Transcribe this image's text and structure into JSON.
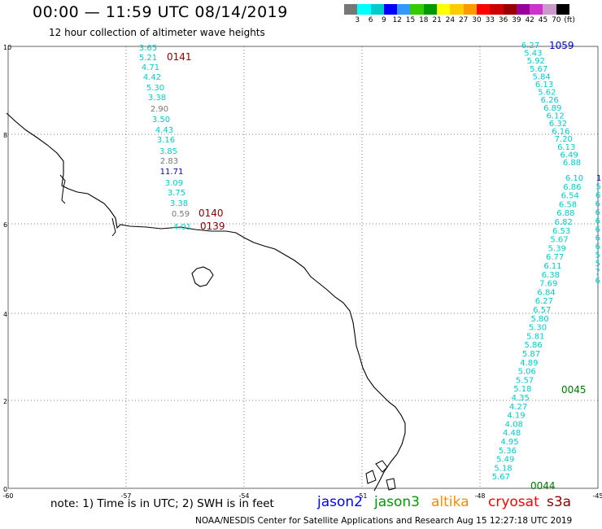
{
  "header": {
    "title": "00:00 — 11:59 UTC 08/14/2019",
    "subtitle": "12 hour collection of altimeter wave heights"
  },
  "legend": {
    "colors": [
      "#777777",
      "#00ffff",
      "#00cccc",
      "#0000ff",
      "#3399ff",
      "#33cc00",
      "#009900",
      "#ffff00",
      "#ffcc00",
      "#ff9900",
      "#ff0000",
      "#cc0000",
      "#990000",
      "#990099",
      "#cc33cc",
      "#cc99cc",
      "#000000"
    ],
    "labels": [
      "3",
      "6",
      "9",
      "12",
      "15",
      "18",
      "21",
      "24",
      "27",
      "30",
      "33",
      "36",
      "39",
      "42",
      "45",
      "70",
      "(ft)"
    ]
  },
  "axes": {
    "x_ticks": [
      "-60",
      "-57",
      "-54",
      "-51",
      "-48",
      "-45"
    ],
    "y_ticks": [
      "10",
      "8",
      "6",
      "4",
      "2",
      "0"
    ]
  },
  "passes": [
    {
      "id": "0141",
      "color": "#8b0000"
    },
    {
      "id": "0140",
      "color": "#8b0000"
    },
    {
      "id": "0139",
      "color": "#8b0000"
    },
    {
      "id": "1059",
      "color": "#0000cc"
    },
    {
      "id": "0045",
      "color": "#007700"
    },
    {
      "id": "0044",
      "color": "#007700"
    }
  ],
  "track_west": {
    "values": [
      "3.65",
      "5.21",
      "4.71",
      "4.42",
      "5.30",
      "3.38",
      "2.90",
      "3.50",
      "4.43",
      "3.16",
      "3.85",
      "2.83",
      "11.71",
      "3.09",
      "3.75",
      "3.38",
      "0.59",
      "4.01"
    ],
    "colors": [
      "#00cccc",
      "#00cccc",
      "#00cccc",
      "#00cccc",
      "#00cccc",
      "#00cccc",
      "#777777",
      "#00cccc",
      "#00cccc",
      "#00cccc",
      "#00cccc",
      "#777777",
      "#0000cc",
      "#00cccc",
      "#00cccc",
      "#00cccc",
      "#777777",
      "#00cccc"
    ]
  },
  "track_east_lower": [
    "6.10",
    "6.86",
    "6.54",
    "6.58",
    "6.88",
    "6.82",
    "6.53",
    "5.67",
    "5.39",
    "6.77",
    "6.11",
    "6.38",
    "7.69",
    "6.84",
    "6.27",
    "6.57",
    "5.80",
    "5.30",
    "5.81",
    "5.86",
    "5.87",
    "4.89",
    "5.06",
    "5.57",
    "5.18",
    "4.35",
    "4.27",
    "4.19",
    "4.08",
    "4.48",
    "4.95",
    "5.36",
    "5.49",
    "5.18",
    "5.67"
  ],
  "track_east_upper": [
    "6.27",
    "5.43",
    "5.92",
    "5.67",
    "5.84",
    "6.13",
    "5.62",
    "6.26",
    "6.89",
    "6.12",
    "6.32",
    "6.16",
    "7.20",
    "6.13",
    "6.49",
    "6.88"
  ],
  "track_far_east": [
    "11",
    "5",
    "6",
    "6",
    "6",
    "6",
    "6",
    "6",
    "6",
    "5",
    "5",
    "7",
    "6"
  ],
  "footer": {
    "note": "note:  1) Time is in UTC;  2) SWH is in feet",
    "satellites": [
      {
        "name": "jason2",
        "color": "#0000ff"
      },
      {
        "name": "jason3",
        "color": "#009900"
      },
      {
        "name": "altika",
        "color": "#ff8c00"
      },
      {
        "name": "cryosat",
        "color": "#ff0000"
      },
      {
        "name": "s3a",
        "color": "#8b0000"
      }
    ],
    "credit": "NOAA/NESDIS Center for Satellite Applications and Research     Aug 15 12:27:18 UTC 2019"
  }
}
